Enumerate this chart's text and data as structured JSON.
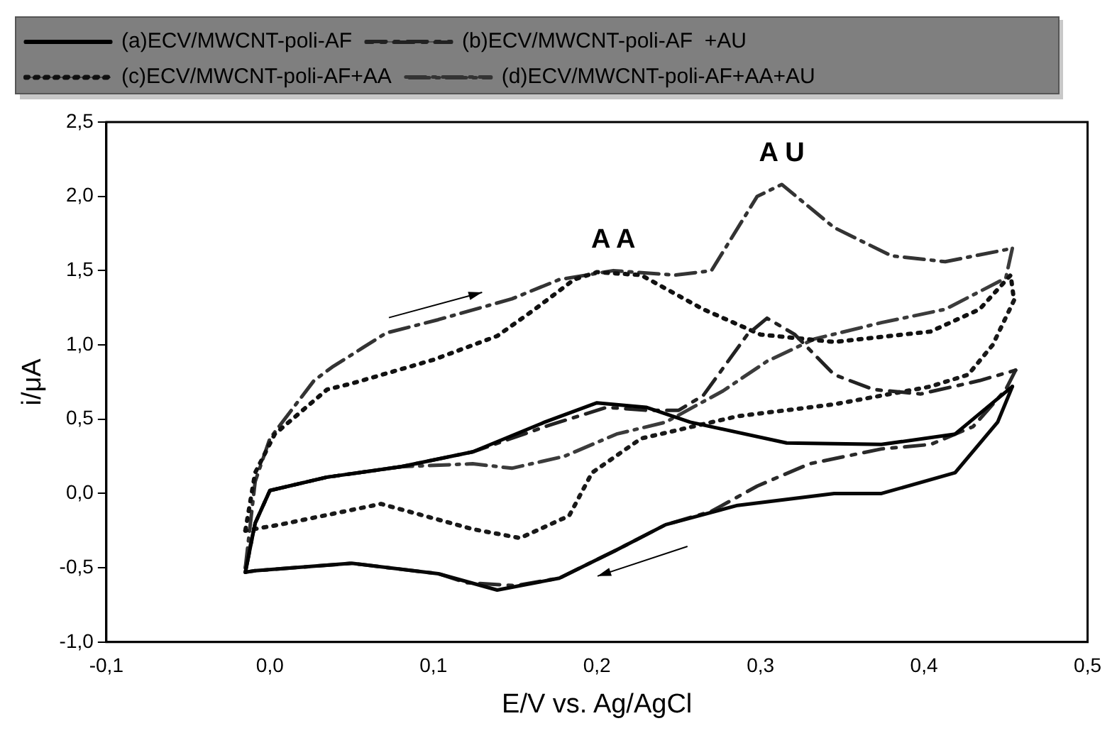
{
  "chart_data": {
    "type": "line",
    "xlabel": "E/V vs. Ag/AgCl",
    "ylabel": "i/μA",
    "xlim": [
      -0.1,
      0.5
    ],
    "xticks": [
      {
        "value": -0.1,
        "label": "-0,1"
      },
      {
        "value": 0.0,
        "label": "0,0"
      },
      {
        "value": 0.1,
        "label": "0,1"
      },
      {
        "value": 0.2,
        "label": "0,2"
      },
      {
        "value": 0.3,
        "label": "0,3"
      },
      {
        "value": 0.4,
        "label": "0,4"
      },
      {
        "value": 0.5,
        "label": "0,5"
      }
    ],
    "ylim": [
      -1.0,
      2.5
    ],
    "yticks": [
      {
        "value": -1.0,
        "label": "-1,0"
      },
      {
        "value": -0.5,
        "label": "-0,5"
      },
      {
        "value": 0.0,
        "label": "0,0"
      },
      {
        "value": 0.5,
        "label": "0,5"
      },
      {
        "value": 1.0,
        "label": "1,0"
      },
      {
        "value": 1.5,
        "label": "1,5"
      },
      {
        "value": 2.0,
        "label": "2,0"
      },
      {
        "value": 2.5,
        "label": "2,5"
      }
    ],
    "grid": false,
    "legend": "top left",
    "marker": "none",
    "annotations": [
      {
        "text": "A A",
        "x": 0.21,
        "y": 1.5
      },
      {
        "text": "A U",
        "x": 0.313,
        "y": 2.08
      }
    ],
    "series": [
      {
        "name": "(a)ECV/MWCNT-poli-AF",
        "color": "#000000",
        "line_style": "solid",
        "x": [
          -0.015,
          -0.009,
          0.0,
          0.035,
          0.08,
          0.124,
          0.168,
          0.2,
          0.23,
          0.257,
          0.316,
          0.374,
          0.419,
          0.454
        ],
        "values": [
          -0.53,
          -0.2,
          0.02,
          0.11,
          0.18,
          0.28,
          0.48,
          0.61,
          0.58,
          0.48,
          0.34,
          0.33,
          0.4,
          0.72
        ]
      },
      {
        "color": "#080808",
        "line_style": "solid",
        "x": [
          0.454,
          0.445,
          0.419,
          0.374,
          0.345,
          0.286,
          0.242,
          0.212,
          0.177,
          0.139,
          0.103,
          0.05,
          -0.009,
          -0.015
        ],
        "values": [
          0.72,
          0.48,
          0.14,
          0.0,
          0.0,
          -0.08,
          -0.21,
          -0.38,
          -0.57,
          -0.65,
          -0.54,
          -0.47,
          -0.52,
          -0.53
        ]
      },
      {
        "name": "(b)ECV/MWCNT-poli-AF  +AU",
        "color": "#222222",
        "line_style": "dashed",
        "x": [
          -0.015,
          -0.009,
          0.0,
          0.035,
          0.08,
          0.124,
          0.171,
          0.206,
          0.23,
          0.25,
          0.265,
          0.292,
          0.304,
          0.321,
          0.345,
          0.369,
          0.398,
          0.434,
          0.456
        ],
        "values": [
          -0.53,
          -0.2,
          0.02,
          0.11,
          0.18,
          0.28,
          0.46,
          0.58,
          0.56,
          0.56,
          0.66,
          1.07,
          1.18,
          1.07,
          0.8,
          0.7,
          0.67,
          0.76,
          0.83
        ]
      },
      {
        "color": "#2a2a2a",
        "line_style": "dashed",
        "x": [
          0.456,
          0.45,
          0.43,
          0.404,
          0.374,
          0.33,
          0.298,
          0.27,
          0.242,
          0.212,
          0.177,
          0.15,
          0.12,
          0.103,
          0.05,
          -0.009,
          -0.015
        ],
        "values": [
          0.83,
          0.7,
          0.45,
          0.33,
          0.3,
          0.2,
          0.05,
          -0.12,
          -0.21,
          -0.38,
          -0.57,
          -0.62,
          -0.6,
          -0.54,
          -0.47,
          -0.52,
          -0.53
        ]
      },
      {
        "name": "(c)ECV/MWCNT-poli-AF+AA",
        "color": "#111111",
        "line_style": "dotted",
        "x": [
          -0.015,
          -0.009,
          0.003,
          0.035,
          0.05,
          0.1,
          0.139,
          0.162,
          0.186,
          0.2,
          0.227,
          0.265,
          0.3,
          0.345,
          0.404,
          0.434,
          0.453,
          0.455
        ],
        "values": [
          -0.25,
          0.14,
          0.4,
          0.7,
          0.74,
          0.9,
          1.06,
          1.24,
          1.44,
          1.49,
          1.47,
          1.24,
          1.07,
          1.02,
          1.09,
          1.24,
          1.47,
          1.3
        ]
      },
      {
        "color": "#191919",
        "line_style": "dotted",
        "x": [
          0.455,
          0.442,
          0.427,
          0.404,
          0.345,
          0.286,
          0.227,
          0.197,
          0.183,
          0.153,
          0.124,
          0.068,
          0.006,
          -0.015
        ],
        "values": [
          1.3,
          1.0,
          0.8,
          0.72,
          0.6,
          0.52,
          0.37,
          0.14,
          -0.15,
          -0.3,
          -0.24,
          -0.07,
          -0.21,
          -0.25
        ]
      },
      {
        "name": "(d)ECV/MWCNT-poli-AF+AA+AU",
        "color": "#333333",
        "line_style": "dashdot",
        "x": [
          -0.015,
          -0.009,
          0.0,
          0.027,
          0.038,
          0.071,
          0.103,
          0.148,
          0.177,
          0.21,
          0.248,
          0.27,
          0.298,
          0.313,
          0.345,
          0.38,
          0.413,
          0.454
        ],
        "values": [
          -0.5,
          0.08,
          0.37,
          0.76,
          0.85,
          1.08,
          1.17,
          1.31,
          1.44,
          1.5,
          1.47,
          1.5,
          2.0,
          2.08,
          1.79,
          1.6,
          1.56,
          1.65
        ]
      },
      {
        "color": "#3b3b3b",
        "line_style": "dashdot",
        "x": [
          0.454,
          0.45,
          0.413,
          0.374,
          0.333,
          0.304,
          0.277,
          0.242,
          0.212,
          0.18,
          0.148,
          0.124,
          0.08,
          0.035,
          0.0,
          -0.009,
          -0.015
        ],
        "values": [
          1.65,
          1.45,
          1.24,
          1.15,
          1.04,
          0.89,
          0.69,
          0.48,
          0.4,
          0.25,
          0.17,
          0.2,
          0.18,
          0.11,
          0.02,
          -0.2,
          -0.5
        ]
      }
    ]
  }
}
